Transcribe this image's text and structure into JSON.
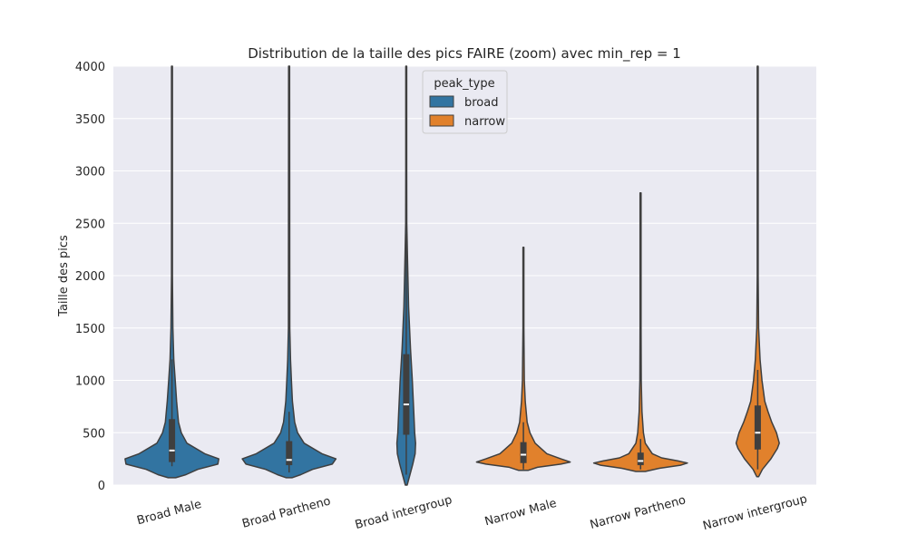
{
  "chart_data": {
    "type": "violin",
    "title": "Distribution de la taille des pics FAIRE (zoom) avec min_rep = 1",
    "xlabel": "",
    "ylabel": "Taille des pics",
    "ylim": [
      0,
      4000
    ],
    "yticks": [
      0,
      500,
      1000,
      1500,
      2000,
      2500,
      3000,
      3500,
      4000
    ],
    "grid": true,
    "legend": {
      "title": "peak_type",
      "placement": "top-center",
      "entries": [
        {
          "label": "broad",
          "color": "#3274a1"
        },
        {
          "label": "narrow",
          "color": "#e1812c"
        }
      ]
    },
    "categories": [
      "Broad Male",
      "Broad Partheno",
      "Broad intergroup",
      "Narrow Male",
      "Narrow Partheno",
      "Narrow intergroup"
    ],
    "violins": [
      {
        "category": "Broad Male",
        "peak_type": "broad",
        "color": "#3274a1",
        "min": 70,
        "max": 4000,
        "q1": 220,
        "median": 330,
        "q3": 630,
        "whisker_low": 180,
        "whisker_high": 1200,
        "profile": [
          [
            70,
            0.08
          ],
          [
            100,
            0.3
          ],
          [
            150,
            0.55
          ],
          [
            200,
            0.98
          ],
          [
            250,
            1.0
          ],
          [
            300,
            0.7
          ],
          [
            400,
            0.32
          ],
          [
            500,
            0.2
          ],
          [
            600,
            0.14
          ],
          [
            800,
            0.1
          ],
          [
            1000,
            0.07
          ],
          [
            1200,
            0.04
          ],
          [
            1500,
            0.02
          ],
          [
            2000,
            0.01
          ],
          [
            4000,
            0.01
          ]
        ]
      },
      {
        "category": "Broad Partheno",
        "peak_type": "broad",
        "color": "#3274a1",
        "min": 70,
        "max": 4000,
        "q1": 190,
        "median": 240,
        "q3": 420,
        "whisker_low": 120,
        "whisker_high": 700,
        "profile": [
          [
            70,
            0.06
          ],
          [
            100,
            0.25
          ],
          [
            150,
            0.5
          ],
          [
            200,
            0.92
          ],
          [
            250,
            1.0
          ],
          [
            300,
            0.7
          ],
          [
            400,
            0.32
          ],
          [
            500,
            0.18
          ],
          [
            600,
            0.12
          ],
          [
            800,
            0.07
          ],
          [
            1000,
            0.05
          ],
          [
            1200,
            0.03
          ],
          [
            1500,
            0.015
          ],
          [
            4000,
            0.01
          ]
        ]
      },
      {
        "category": "Broad intergroup",
        "peak_type": "broad",
        "color": "#3274a1",
        "min": 0,
        "max": 4000,
        "q1": 480,
        "median": 770,
        "q3": 1250,
        "whisker_low": 100,
        "whisker_high": 2400,
        "profile": [
          [
            0,
            0.02
          ],
          [
            100,
            0.08
          ],
          [
            200,
            0.14
          ],
          [
            300,
            0.19
          ],
          [
            400,
            0.2
          ],
          [
            500,
            0.18
          ],
          [
            700,
            0.16
          ],
          [
            1000,
            0.13
          ],
          [
            1300,
            0.09
          ],
          [
            1700,
            0.05
          ],
          [
            2200,
            0.025
          ],
          [
            2500,
            0.012
          ],
          [
            3000,
            0.01
          ],
          [
            4000,
            0.01
          ]
        ]
      },
      {
        "category": "Narrow Male",
        "peak_type": "narrow",
        "color": "#e1812c",
        "min": 140,
        "max": 2270,
        "q1": 210,
        "median": 290,
        "q3": 410,
        "whisker_low": 150,
        "whisker_high": 600,
        "profile": [
          [
            140,
            0.1
          ],
          [
            170,
            0.3
          ],
          [
            200,
            0.8
          ],
          [
            220,
            1.0
          ],
          [
            250,
            0.8
          ],
          [
            300,
            0.5
          ],
          [
            400,
            0.25
          ],
          [
            500,
            0.14
          ],
          [
            600,
            0.08
          ],
          [
            800,
            0.04
          ],
          [
            1000,
            0.02
          ],
          [
            1500,
            0.01
          ],
          [
            2270,
            0.01
          ]
        ]
      },
      {
        "category": "Narrow Partheno",
        "peak_type": "narrow",
        "color": "#e1812c",
        "min": 130,
        "max": 2790,
        "q1": 190,
        "median": 230,
        "q3": 310,
        "whisker_low": 150,
        "whisker_high": 440,
        "profile": [
          [
            130,
            0.1
          ],
          [
            160,
            0.4
          ],
          [
            190,
            0.85
          ],
          [
            210,
            1.0
          ],
          [
            230,
            0.8
          ],
          [
            260,
            0.45
          ],
          [
            300,
            0.25
          ],
          [
            400,
            0.1
          ],
          [
            500,
            0.06
          ],
          [
            700,
            0.03
          ],
          [
            1000,
            0.015
          ],
          [
            1500,
            0.01
          ],
          [
            2790,
            0.01
          ]
        ]
      },
      {
        "category": "Narrow intergroup",
        "peak_type": "narrow",
        "color": "#e1812c",
        "min": 80,
        "max": 4000,
        "q1": 340,
        "median": 500,
        "q3": 760,
        "whisker_low": 150,
        "whisker_high": 1100,
        "profile": [
          [
            80,
            0.02
          ],
          [
            150,
            0.1
          ],
          [
            250,
            0.28
          ],
          [
            350,
            0.42
          ],
          [
            400,
            0.46
          ],
          [
            500,
            0.4
          ],
          [
            600,
            0.3
          ],
          [
            700,
            0.22
          ],
          [
            800,
            0.15
          ],
          [
            1000,
            0.09
          ],
          [
            1200,
            0.05
          ],
          [
            1500,
            0.02
          ],
          [
            2000,
            0.01
          ],
          [
            4000,
            0.01
          ]
        ]
      }
    ]
  }
}
